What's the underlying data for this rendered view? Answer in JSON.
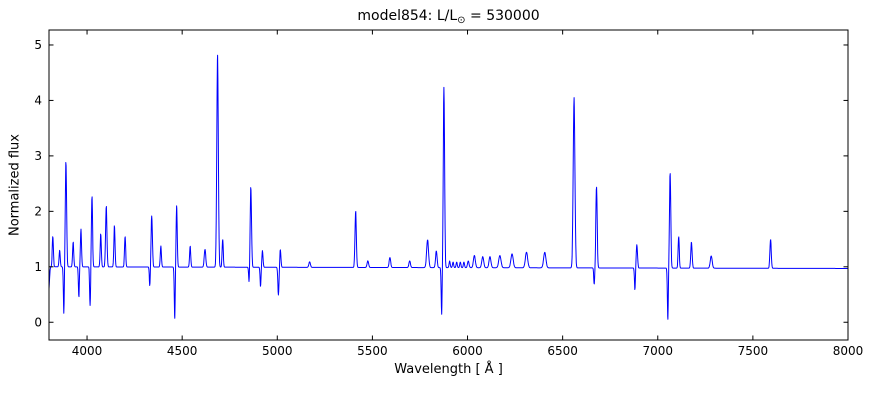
{
  "figure": {
    "title_prefix": "model854: L/L",
    "title_sub": "⊙",
    "title_suffix": " = 530000",
    "xlabel": "Wavelength [ Å ]",
    "ylabel": "Normalized flux"
  },
  "chart_data": {
    "type": "line",
    "title": "model854: L/L⊙ = 530000",
    "xlabel": "Wavelength [ Å ]",
    "ylabel": "Normalized flux",
    "xlim": [
      3800,
      8000
    ],
    "ylim": [
      -0.32,
      5.27
    ],
    "xticks": [
      4000,
      4500,
      5000,
      5500,
      6000,
      6500,
      7000,
      7500,
      8000
    ],
    "yticks": [
      0,
      1,
      2,
      3,
      4,
      5
    ],
    "grid": false,
    "legend": null,
    "line_color": "#0000ff",
    "background": "#ffffff",
    "sampling_step": 1.5,
    "continuum": [
      [
        3800,
        1.0
      ],
      [
        8000,
        0.97
      ]
    ],
    "features_format": [
      "center_angstrom",
      "sigma_angstrom",
      "amplitude_above_continuum"
    ],
    "features": [
      [
        3798,
        4,
        -0.45
      ],
      [
        3820,
        3,
        0.55
      ],
      [
        3856,
        3,
        0.3
      ],
      [
        3878,
        2.5,
        -0.85
      ],
      [
        3889,
        3.5,
        1.9
      ],
      [
        3927,
        3,
        0.45
      ],
      [
        3957,
        2.5,
        -0.55
      ],
      [
        3968,
        3,
        0.68
      ],
      [
        4016,
        2.5,
        -0.7
      ],
      [
        4026,
        3,
        1.28
      ],
      [
        4072,
        3,
        0.6
      ],
      [
        4101,
        3.5,
        1.1
      ],
      [
        4144,
        3,
        0.75
      ],
      [
        4200,
        3,
        0.55
      ],
      [
        4330,
        2.5,
        -0.35
      ],
      [
        4340,
        3.5,
        0.92
      ],
      [
        4388,
        3,
        0.38
      ],
      [
        4461,
        2.5,
        -0.95
      ],
      [
        4471,
        3,
        1.12
      ],
      [
        4542,
        3,
        0.38
      ],
      [
        4620,
        4,
        0.32
      ],
      [
        4686,
        4,
        3.85
      ],
      [
        4713,
        3,
        0.5
      ],
      [
        4852,
        2.5,
        -0.3
      ],
      [
        4861,
        3.5,
        1.45
      ],
      [
        4912,
        2.5,
        -0.35
      ],
      [
        4922,
        3,
        0.3
      ],
      [
        5006,
        3,
        -0.5
      ],
      [
        5016,
        3,
        0.32
      ],
      [
        5170,
        4,
        0.1
      ],
      [
        5412,
        3.5,
        1.02
      ],
      [
        5476,
        4,
        0.12
      ],
      [
        5592,
        4,
        0.18
      ],
      [
        5696,
        4,
        0.12
      ],
      [
        5790,
        5,
        0.5
      ],
      [
        5836,
        4,
        0.3
      ],
      [
        5864,
        2.5,
        -0.85
      ],
      [
        5876,
        3.5,
        3.25
      ],
      [
        5906,
        3,
        0.12
      ],
      [
        5924,
        3,
        0.1
      ],
      [
        5943,
        3,
        0.1
      ],
      [
        5962,
        3,
        0.1
      ],
      [
        5981,
        3,
        0.1
      ],
      [
        6004,
        4,
        0.12
      ],
      [
        6036,
        5,
        0.22
      ],
      [
        6080,
        5,
        0.2
      ],
      [
        6118,
        5,
        0.2
      ],
      [
        6170,
        6,
        0.22
      ],
      [
        6234,
        6,
        0.25
      ],
      [
        6310,
        6,
        0.28
      ],
      [
        6406,
        6,
        0.28
      ],
      [
        6560,
        4.5,
        3.07
      ],
      [
        6666,
        2.5,
        -0.3
      ],
      [
        6678,
        3.5,
        1.47
      ],
      [
        6880,
        2.5,
        -0.4
      ],
      [
        6890,
        3.5,
        0.42
      ],
      [
        7053,
        2.5,
        -0.95
      ],
      [
        7065,
        3.5,
        1.72
      ],
      [
        7110,
        3,
        0.57
      ],
      [
        7177,
        3.5,
        0.47
      ],
      [
        7281,
        5,
        0.22
      ],
      [
        7593,
        3.5,
        0.52
      ]
    ]
  }
}
